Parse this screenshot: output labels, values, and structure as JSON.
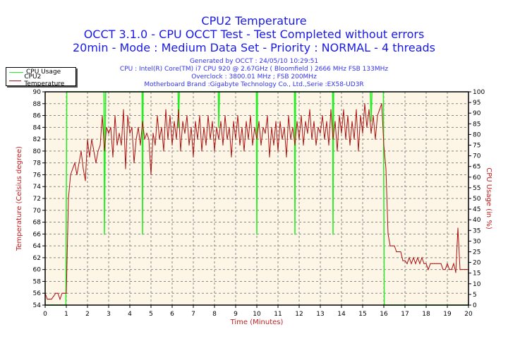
{
  "header": {
    "title": "CPU2 Temperature",
    "subtitle1": "OCCT 3.1.0 - CPU OCCT Test - Test Completed without errors",
    "subtitle2": "20min - Mode : Medium Data Set - Priority : NORMAL - 4 threads",
    "info": [
      "Generated by OCCT : 24/05/10 10:29:51",
      "CPU : Intel(R) Core(TM) i7 CPU 920 @ 2.67GHz ( Bloomfield ) 2666 MHz FSB 133MHz",
      "Overclock : 3800.01 MHz ; FSB 200MHz",
      "Motherboard Brand :Gigabyte Technology Co., Ltd.,Serie :EX58-UD3R"
    ]
  },
  "colors": {
    "temperature": "#aa1111",
    "cpu_usage": "#22ee22",
    "plot_bg": "#fdf5e6",
    "axis_label": "#c02020"
  },
  "chart_data": {
    "type": "line",
    "title": "CPU2 Temperature",
    "xlabel": "Time (Minutes)",
    "ylabel": "Temperature (Celsius degree)",
    "y2label": "CPU Usage (in %)",
    "xlim": [
      0,
      20
    ],
    "ylim": [
      54,
      90
    ],
    "y2lim": [
      0,
      100
    ],
    "xticks": [
      0,
      1,
      2,
      3,
      4,
      5,
      6,
      7,
      8,
      9,
      10,
      11,
      12,
      13,
      14,
      15,
      16,
      17,
      18,
      19,
      20
    ],
    "yticks": [
      54,
      56,
      58,
      60,
      62,
      64,
      66,
      68,
      70,
      72,
      74,
      76,
      78,
      80,
      82,
      84,
      86,
      88,
      90
    ],
    "y2ticks": [
      0,
      5,
      10,
      15,
      20,
      25,
      30,
      35,
      40,
      45,
      50,
      55,
      60,
      65,
      70,
      75,
      80,
      85,
      90,
      95,
      100
    ],
    "grid": true,
    "legend_position": "top-left",
    "legend": [
      "CPU Usage",
      "CPU2 Temperature"
    ],
    "series": [
      {
        "name": "CPU2 Temperature",
        "axis": "left",
        "x_start": 0,
        "x_step": 0.1,
        "values": [
          56,
          55,
          55,
          55,
          55.5,
          56,
          56,
          55,
          56,
          56,
          56,
          72,
          76,
          77,
          78,
          76,
          78,
          80,
          77,
          75,
          82,
          79,
          82,
          80,
          78,
          80,
          81,
          86,
          80,
          84,
          83,
          84,
          79,
          86,
          81,
          83,
          81,
          87,
          77,
          86,
          83,
          84,
          78,
          82,
          84,
          81,
          85,
          82,
          83,
          82,
          76,
          83,
          81,
          86,
          82,
          84,
          80,
          87,
          82,
          86,
          81,
          85,
          82,
          87,
          80,
          85,
          83,
          86,
          81,
          84,
          79,
          85,
          82,
          86,
          80,
          84,
          81,
          86,
          82,
          85,
          80,
          84,
          82,
          85,
          81,
          86,
          82,
          84,
          79,
          85,
          82,
          86,
          81,
          84,
          80,
          85,
          82,
          86,
          81,
          84,
          82,
          85,
          81,
          84,
          83,
          86,
          79,
          84,
          81,
          85,
          80,
          85,
          82,
          84,
          79,
          86,
          82,
          84,
          81,
          85,
          82,
          86,
          81,
          85,
          83,
          87,
          82,
          85,
          81,
          84,
          83,
          86,
          82,
          85,
          81,
          87,
          82,
          85,
          80,
          86,
          83,
          87,
          82,
          86,
          81,
          85,
          82,
          87,
          80,
          86,
          83,
          88,
          84,
          87,
          83,
          86,
          82,
          86,
          87,
          88,
          81,
          77,
          66,
          64,
          64,
          64,
          63,
          63,
          63,
          61.5,
          61.5,
          61,
          62,
          61,
          62,
          61,
          62,
          61,
          62,
          61,
          61,
          60,
          61,
          61,
          61,
          61,
          61,
          61,
          60,
          60,
          61,
          60,
          60,
          61,
          59.5,
          67,
          60,
          60,
          60,
          60,
          60
        ]
      },
      {
        "name": "CPU Usage",
        "axis": "right",
        "points": [
          [
            0,
            0
          ],
          [
            0.98,
            0
          ],
          [
            1.02,
            100
          ],
          [
            2.78,
            100
          ],
          [
            2.8,
            33
          ],
          [
            2.83,
            67
          ],
          [
            2.86,
            100
          ],
          [
            4.58,
            100
          ],
          [
            4.6,
            33
          ],
          [
            4.63,
            100
          ],
          [
            6.28,
            100
          ],
          [
            6.3,
            83
          ],
          [
            6.34,
            100
          ],
          [
            8.18,
            100
          ],
          [
            8.2,
            83
          ],
          [
            8.24,
            100
          ],
          [
            9.98,
            100
          ],
          [
            10.0,
            33
          ],
          [
            10.03,
            100
          ],
          [
            11.78,
            100
          ],
          [
            11.8,
            33
          ],
          [
            11.83,
            100
          ],
          [
            13.58,
            100
          ],
          [
            13.6,
            33
          ],
          [
            13.63,
            100
          ],
          [
            15.36,
            100
          ],
          [
            15.4,
            86
          ],
          [
            15.44,
            100
          ],
          [
            15.98,
            100
          ],
          [
            16.02,
            0
          ],
          [
            20,
            0
          ]
        ]
      }
    ]
  }
}
